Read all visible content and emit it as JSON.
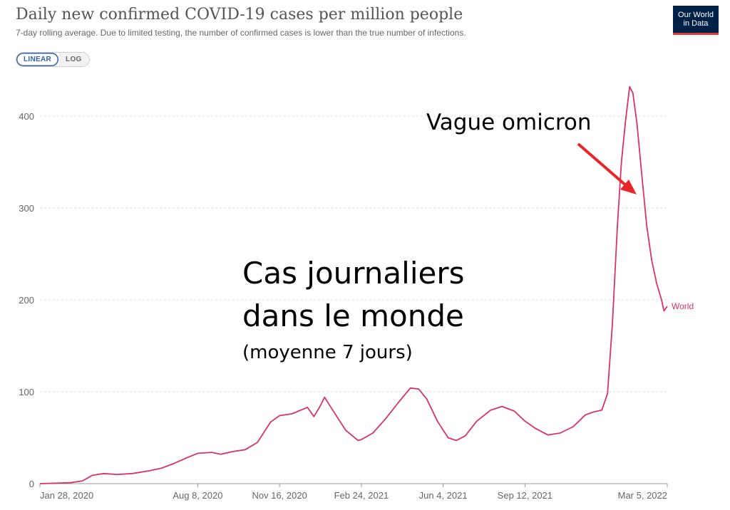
{
  "header": {
    "title": "Daily new confirmed COVID-19 cases per million people",
    "subtitle": "7-day rolling average. Due to limited testing, the number of confirmed cases is lower than the true number of infections."
  },
  "logo": {
    "line1": "Our World",
    "line2": "in Data"
  },
  "scale_toggle": {
    "linear_label": "LINEAR",
    "log_label": "LOG",
    "selected": "LINEAR"
  },
  "annotations": {
    "omicron_label": "Vague omicron",
    "main_line1": "Cas journaliers",
    "main_line2": "dans le monde",
    "main_line3": "(moyenne 7 jours)"
  },
  "chart_data": {
    "type": "line",
    "title": "Daily new confirmed COVID-19 cases per million people",
    "xlabel": "",
    "ylabel": "",
    "x_range": [
      "2020-01-22",
      "2022-03-05"
    ],
    "ylim": [
      0,
      440
    ],
    "y_ticks": [
      0,
      100,
      200,
      300,
      400
    ],
    "x_ticks": [
      "Jan 28, 2020",
      "Aug 8, 2020",
      "Nov 16, 2020",
      "Feb 24, 2021",
      "Jun 4, 2021",
      "Sep 12, 2021",
      "Mar 5, 2022"
    ],
    "grid": "horizontal dashed",
    "legend": "inline label at line end",
    "series": [
      {
        "name": "World",
        "color": "#d6336c",
        "points": [
          [
            "2020-01-22",
            0
          ],
          [
            "2020-02-15",
            0.5
          ],
          [
            "2020-03-05",
            1
          ],
          [
            "2020-03-20",
            3
          ],
          [
            "2020-04-01",
            9
          ],
          [
            "2020-04-15",
            11
          ],
          [
            "2020-05-01",
            10
          ],
          [
            "2020-05-20",
            11
          ],
          [
            "2020-06-10",
            14
          ],
          [
            "2020-06-25",
            17
          ],
          [
            "2020-07-10",
            22
          ],
          [
            "2020-07-25",
            28
          ],
          [
            "2020-08-08",
            33
          ],
          [
            "2020-08-25",
            34
          ],
          [
            "2020-09-05",
            32
          ],
          [
            "2020-09-20",
            35
          ],
          [
            "2020-10-05",
            37
          ],
          [
            "2020-10-20",
            45
          ],
          [
            "2020-11-05",
            67
          ],
          [
            "2020-11-16",
            74
          ],
          [
            "2020-12-01",
            76
          ],
          [
            "2020-12-20",
            83
          ],
          [
            "2020-12-28",
            73
          ],
          [
            "2021-01-05",
            85
          ],
          [
            "2021-01-10",
            94
          ],
          [
            "2021-01-20",
            80
          ],
          [
            "2021-02-05",
            58
          ],
          [
            "2021-02-20",
            47
          ],
          [
            "2021-02-24",
            48
          ],
          [
            "2021-03-10",
            55
          ],
          [
            "2021-03-25",
            70
          ],
          [
            "2021-04-10",
            88
          ],
          [
            "2021-04-25",
            104
          ],
          [
            "2021-05-05",
            103
          ],
          [
            "2021-05-15",
            92
          ],
          [
            "2021-05-28",
            68
          ],
          [
            "2021-06-10",
            50
          ],
          [
            "2021-06-20",
            47
          ],
          [
            "2021-07-01",
            52
          ],
          [
            "2021-07-15",
            68
          ],
          [
            "2021-08-01",
            80
          ],
          [
            "2021-08-15",
            84
          ],
          [
            "2021-08-30",
            79
          ],
          [
            "2021-09-12",
            68
          ],
          [
            "2021-09-25",
            60
          ],
          [
            "2021-10-10",
            53
          ],
          [
            "2021-10-25",
            55
          ],
          [
            "2021-11-10",
            62
          ],
          [
            "2021-11-25",
            75
          ],
          [
            "2021-12-05",
            78
          ],
          [
            "2021-12-15",
            80
          ],
          [
            "2021-12-22",
            98
          ],
          [
            "2021-12-28",
            175
          ],
          [
            "2022-01-03",
            280
          ],
          [
            "2022-01-08",
            350
          ],
          [
            "2022-01-13",
            395
          ],
          [
            "2022-01-18",
            432
          ],
          [
            "2022-01-22",
            425
          ],
          [
            "2022-01-27",
            392
          ],
          [
            "2022-02-02",
            335
          ],
          [
            "2022-02-08",
            280
          ],
          [
            "2022-02-14",
            243
          ],
          [
            "2022-02-20",
            218
          ],
          [
            "2022-02-26",
            200
          ],
          [
            "2022-03-01",
            188
          ],
          [
            "2022-03-05",
            193
          ]
        ]
      }
    ]
  }
}
